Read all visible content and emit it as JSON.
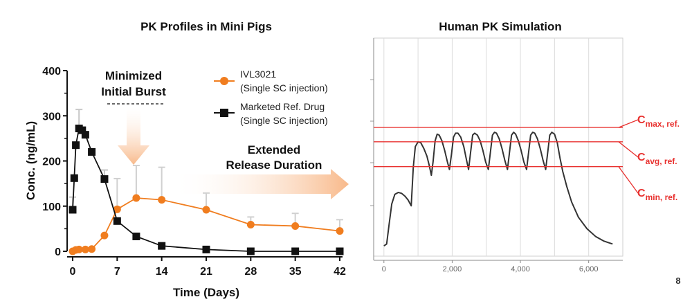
{
  "page_number": "8",
  "colors": {
    "ivl": "#f07d1f",
    "ref": "#111111",
    "arrow": "#f8b98a",
    "ref_line": "#e8312f",
    "curve": "#333333",
    "grid": "#dcdcdc"
  },
  "annotations": {
    "burst_line1": "Minimized",
    "burst_line2": "Initial Burst",
    "release_line1": "Extended",
    "release_line2": "Release Duration"
  },
  "chart_data": [
    {
      "type": "line",
      "title": "PK Profiles in Mini Pigs",
      "xlabel": "Time (Days)",
      "ylabel": "Conc. (ng/mL)",
      "xlim": [
        0,
        42
      ],
      "ylim": [
        0,
        400
      ],
      "x_ticks": [
        "0",
        "7",
        "14",
        "21",
        "28",
        "35",
        "42"
      ],
      "y_ticks": [
        "0",
        "100",
        "200",
        "300",
        "400"
      ],
      "legend_position": "top-right",
      "series": [
        {
          "name": "IVL3021",
          "name_line2": "(Single SC injection)",
          "marker": "circle",
          "color": "#f07d1f",
          "x": [
            0,
            0.5,
            1,
            2,
            3,
            5,
            7,
            10,
            14,
            21,
            28,
            35,
            42
          ],
          "y": [
            0,
            3,
            4,
            4,
            5,
            35,
            93,
            118,
            114,
            92,
            59,
            56,
            45
          ],
          "err": [
            0,
            0,
            0,
            0,
            0,
            0,
            68,
            72,
            72,
            37,
            17,
            28,
            25
          ]
        },
        {
          "name": "Marketed Ref. Drug",
          "name_line2": "(Single SC injection)",
          "marker": "square",
          "color": "#111111",
          "x": [
            0,
            0.25,
            0.5,
            1,
            1.5,
            2,
            3,
            5,
            7,
            10,
            14,
            21,
            28,
            35,
            42
          ],
          "y": [
            92,
            162,
            235,
            272,
            268,
            258,
            220,
            160,
            67,
            33,
            12,
            4,
            0,
            0,
            0
          ],
          "err": [
            28,
            0,
            0,
            42,
            0,
            0,
            0,
            20,
            0,
            0,
            0,
            0,
            0,
            0,
            0
          ]
        }
      ]
    },
    {
      "type": "line",
      "title": "Human PK Simulation",
      "x_ticks": [
        "0",
        "2,000",
        "4,000",
        "6,000"
      ],
      "xlim": [
        -300,
        7000
      ],
      "ylim": [
        0,
        10
      ],
      "grid": true,
      "series": [
        {
          "x": [
            0,
            80,
            150,
            230,
            320,
            420,
            520,
            620,
            710,
            800,
            860,
            920,
            1000,
            1080,
            1170,
            1260,
            1330,
            1390,
            1440,
            1500,
            1560,
            1620,
            1700,
            1780,
            1860,
            1920,
            1980,
            2040,
            2100,
            2170,
            2250,
            2340,
            2420,
            2480,
            2540,
            2600,
            2660,
            2740,
            2820,
            2900,
            2980,
            3060,
            3120,
            3180,
            3240,
            3300,
            3380,
            3460,
            3540,
            3620,
            3680,
            3740,
            3800,
            3860,
            3940,
            4020,
            4100,
            4180,
            4240,
            4300,
            4360,
            4420,
            4500,
            4580,
            4660,
            4740,
            4800,
            4860,
            4920,
            5000,
            5080,
            5160,
            5240,
            5360,
            5500,
            5700,
            5950,
            6200,
            6450,
            6700
          ],
          "y": [
            0.1,
            0.2,
            1.2,
            2.3,
            2.8,
            2.9,
            2.85,
            2.7,
            2.5,
            2.2,
            4.2,
            5.3,
            5.55,
            5.5,
            5.2,
            4.8,
            4.3,
            3.8,
            4.5,
            5.6,
            5.95,
            5.9,
            5.6,
            5.1,
            4.5,
            4.1,
            4.9,
            5.8,
            6.0,
            6.0,
            5.8,
            5.3,
            4.6,
            4.1,
            5.0,
            5.9,
            6.0,
            5.9,
            5.6,
            5.1,
            4.5,
            4.1,
            5.0,
            5.9,
            6.05,
            6.0,
            5.7,
            5.2,
            4.6,
            4.1,
            5.0,
            5.9,
            6.05,
            5.95,
            5.6,
            5.1,
            4.5,
            4.1,
            5.0,
            5.9,
            6.05,
            6.0,
            5.7,
            5.2,
            4.6,
            4.1,
            5.0,
            5.9,
            6.05,
            5.95,
            5.5,
            4.7,
            4.0,
            3.2,
            2.4,
            1.6,
            1.0,
            0.6,
            0.35,
            0.2
          ]
        }
      ],
      "reference_lines": [
        {
          "label_main": "C",
          "label_sub": "max, ref.",
          "y": 6.3
        },
        {
          "label_main": "C",
          "label_sub": "avg, ref.",
          "y": 5.55
        },
        {
          "label_main": "C",
          "label_sub": "min, ref.",
          "y": 4.25
        }
      ]
    }
  ]
}
